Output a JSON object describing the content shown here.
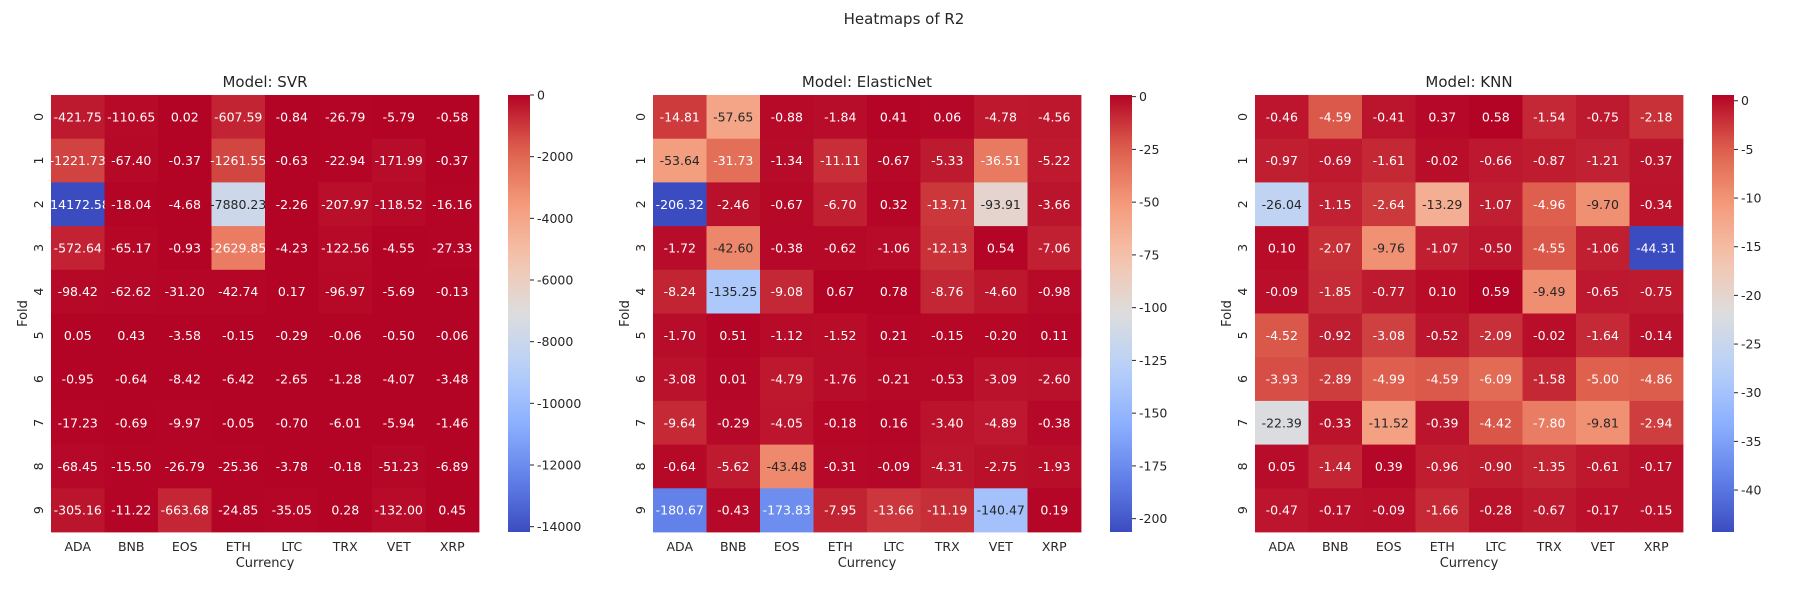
{
  "figure_title": "Heatmaps of R2",
  "chart_data": [
    {
      "type": "heatmap",
      "title": "Model: SVR",
      "xlabel": "Currency",
      "ylabel": "Fold",
      "x": [
        "ADA",
        "BNB",
        "EOS",
        "ETH",
        "LTC",
        "TRX",
        "VET",
        "XRP"
      ],
      "y": [
        "0",
        "1",
        "2",
        "3",
        "4",
        "5",
        "6",
        "7",
        "8",
        "9"
      ],
      "values": [
        [
          -421.75,
          -110.65,
          0.02,
          -607.59,
          -0.84,
          -26.79,
          -5.79,
          -0.58
        ],
        [
          -1221.73,
          -67.4,
          -0.37,
          -1261.55,
          -0.63,
          -22.94,
          -171.99,
          -0.37
        ],
        [
          -14172.58,
          -18.04,
          -4.68,
          -7880.23,
          -2.26,
          -207.97,
          -118.52,
          -16.16
        ],
        [
          -572.64,
          -65.17,
          -0.93,
          -2629.85,
          -4.23,
          -122.56,
          -4.55,
          -27.33
        ],
        [
          -98.42,
          -62.62,
          -31.2,
          -42.74,
          0.17,
          -96.97,
          -5.69,
          -0.13
        ],
        [
          0.05,
          0.43,
          -3.58,
          -0.15,
          -0.29,
          -0.06,
          -0.5,
          -0.06
        ],
        [
          -0.95,
          -0.64,
          -8.42,
          -6.42,
          -2.65,
          -1.28,
          -4.07,
          -3.48
        ],
        [
          -17.23,
          -0.69,
          -9.97,
          -0.05,
          -0.7,
          -6.01,
          -5.94,
          -1.46
        ],
        [
          -68.45,
          -15.5,
          -26.79,
          -25.36,
          -3.78,
          -0.18,
          -51.23,
          -6.89
        ],
        [
          -305.16,
          -11.22,
          -663.68,
          -24.85,
          -35.05,
          0.28,
          -132.0,
          0.45
        ]
      ],
      "colorbar": {
        "vmin": -14172.58,
        "vmax": 0.45,
        "ticks": [
          0,
          -2000,
          -4000,
          -6000,
          -8000,
          -10000,
          -12000,
          -14000
        ]
      }
    },
    {
      "type": "heatmap",
      "title": "Model: ElasticNet",
      "xlabel": "Currency",
      "ylabel": "Fold",
      "x": [
        "ADA",
        "BNB",
        "EOS",
        "ETH",
        "LTC",
        "TRX",
        "VET",
        "XRP"
      ],
      "y": [
        "0",
        "1",
        "2",
        "3",
        "4",
        "5",
        "6",
        "7",
        "8",
        "9"
      ],
      "values": [
        [
          -14.81,
          -57.65,
          -0.88,
          -1.84,
          0.41,
          0.06,
          -4.78,
          -4.56
        ],
        [
          -53.64,
          -31.73,
          -1.34,
          -11.11,
          -0.67,
          -5.33,
          -36.51,
          -5.22
        ],
        [
          -206.32,
          -2.46,
          -0.67,
          -6.7,
          0.32,
          -13.71,
          -93.91,
          -3.66
        ],
        [
          -1.72,
          -42.6,
          -0.38,
          -0.62,
          -1.06,
          -12.13,
          0.54,
          -7.06
        ],
        [
          -8.24,
          -135.25,
          -9.08,
          0.67,
          0.78,
          -8.76,
          -4.6,
          -0.98
        ],
        [
          -1.7,
          0.51,
          -1.12,
          -1.52,
          0.21,
          -0.15,
          -0.2,
          0.11
        ],
        [
          -3.08,
          0.01,
          -4.79,
          -1.76,
          -0.21,
          -0.53,
          -3.09,
          -2.6
        ],
        [
          -9.64,
          -0.29,
          -4.05,
          -0.18,
          0.16,
          -3.4,
          -4.89,
          -0.38
        ],
        [
          -0.64,
          -5.62,
          -43.48,
          -0.31,
          -0.09,
          -4.31,
          -2.75,
          -1.93
        ],
        [
          -180.67,
          -0.43,
          -173.83,
          -7.95,
          -13.66,
          -11.19,
          -140.47,
          0.19
        ]
      ],
      "colorbar": {
        "vmin": -206.32,
        "vmax": 0.78,
        "ticks": [
          0,
          -25,
          -50,
          -75,
          -100,
          -125,
          -150,
          -175,
          -200
        ]
      }
    },
    {
      "type": "heatmap",
      "title": "Model: KNN",
      "xlabel": "Currency",
      "ylabel": "Fold",
      "x": [
        "ADA",
        "BNB",
        "EOS",
        "ETH",
        "LTC",
        "TRX",
        "VET",
        "XRP"
      ],
      "y": [
        "0",
        "1",
        "2",
        "3",
        "4",
        "5",
        "6",
        "7",
        "8",
        "9"
      ],
      "values": [
        [
          -0.46,
          -4.59,
          -0.41,
          0.37,
          0.58,
          -1.54,
          -0.75,
          -2.18
        ],
        [
          -0.97,
          -0.69,
          -1.61,
          -0.02,
          -0.66,
          -0.87,
          -1.21,
          -0.37
        ],
        [
          -26.04,
          -1.15,
          -2.64,
          -13.29,
          -1.07,
          -4.96,
          -9.7,
          -0.34
        ],
        [
          0.1,
          -2.07,
          -9.76,
          -1.07,
          -0.5,
          -4.55,
          -1.06,
          -44.31
        ],
        [
          -0.09,
          -1.85,
          -0.77,
          0.1,
          0.59,
          -9.49,
          -0.65,
          -0.75
        ],
        [
          -4.52,
          -0.92,
          -3.08,
          -0.52,
          -2.09,
          -0.02,
          -1.64,
          -0.14
        ],
        [
          -3.93,
          -2.89,
          -4.99,
          -4.59,
          -6.09,
          -1.58,
          -5.0,
          -4.86
        ],
        [
          -22.39,
          -0.33,
          -11.52,
          -0.39,
          -4.42,
          -7.8,
          -9.81,
          -2.94
        ],
        [
          0.05,
          -1.44,
          0.39,
          -0.96,
          -0.9,
          -1.35,
          -0.61,
          -0.17
        ],
        [
          -0.47,
          -0.17,
          -0.09,
          -1.66,
          -0.28,
          -0.67,
          -0.17,
          -0.15
        ]
      ],
      "colorbar": {
        "vmin": -44.31,
        "vmax": 0.59,
        "ticks": [
          0,
          -5,
          -10,
          -15,
          -20,
          -25,
          -30,
          -35,
          -40
        ]
      }
    }
  ]
}
